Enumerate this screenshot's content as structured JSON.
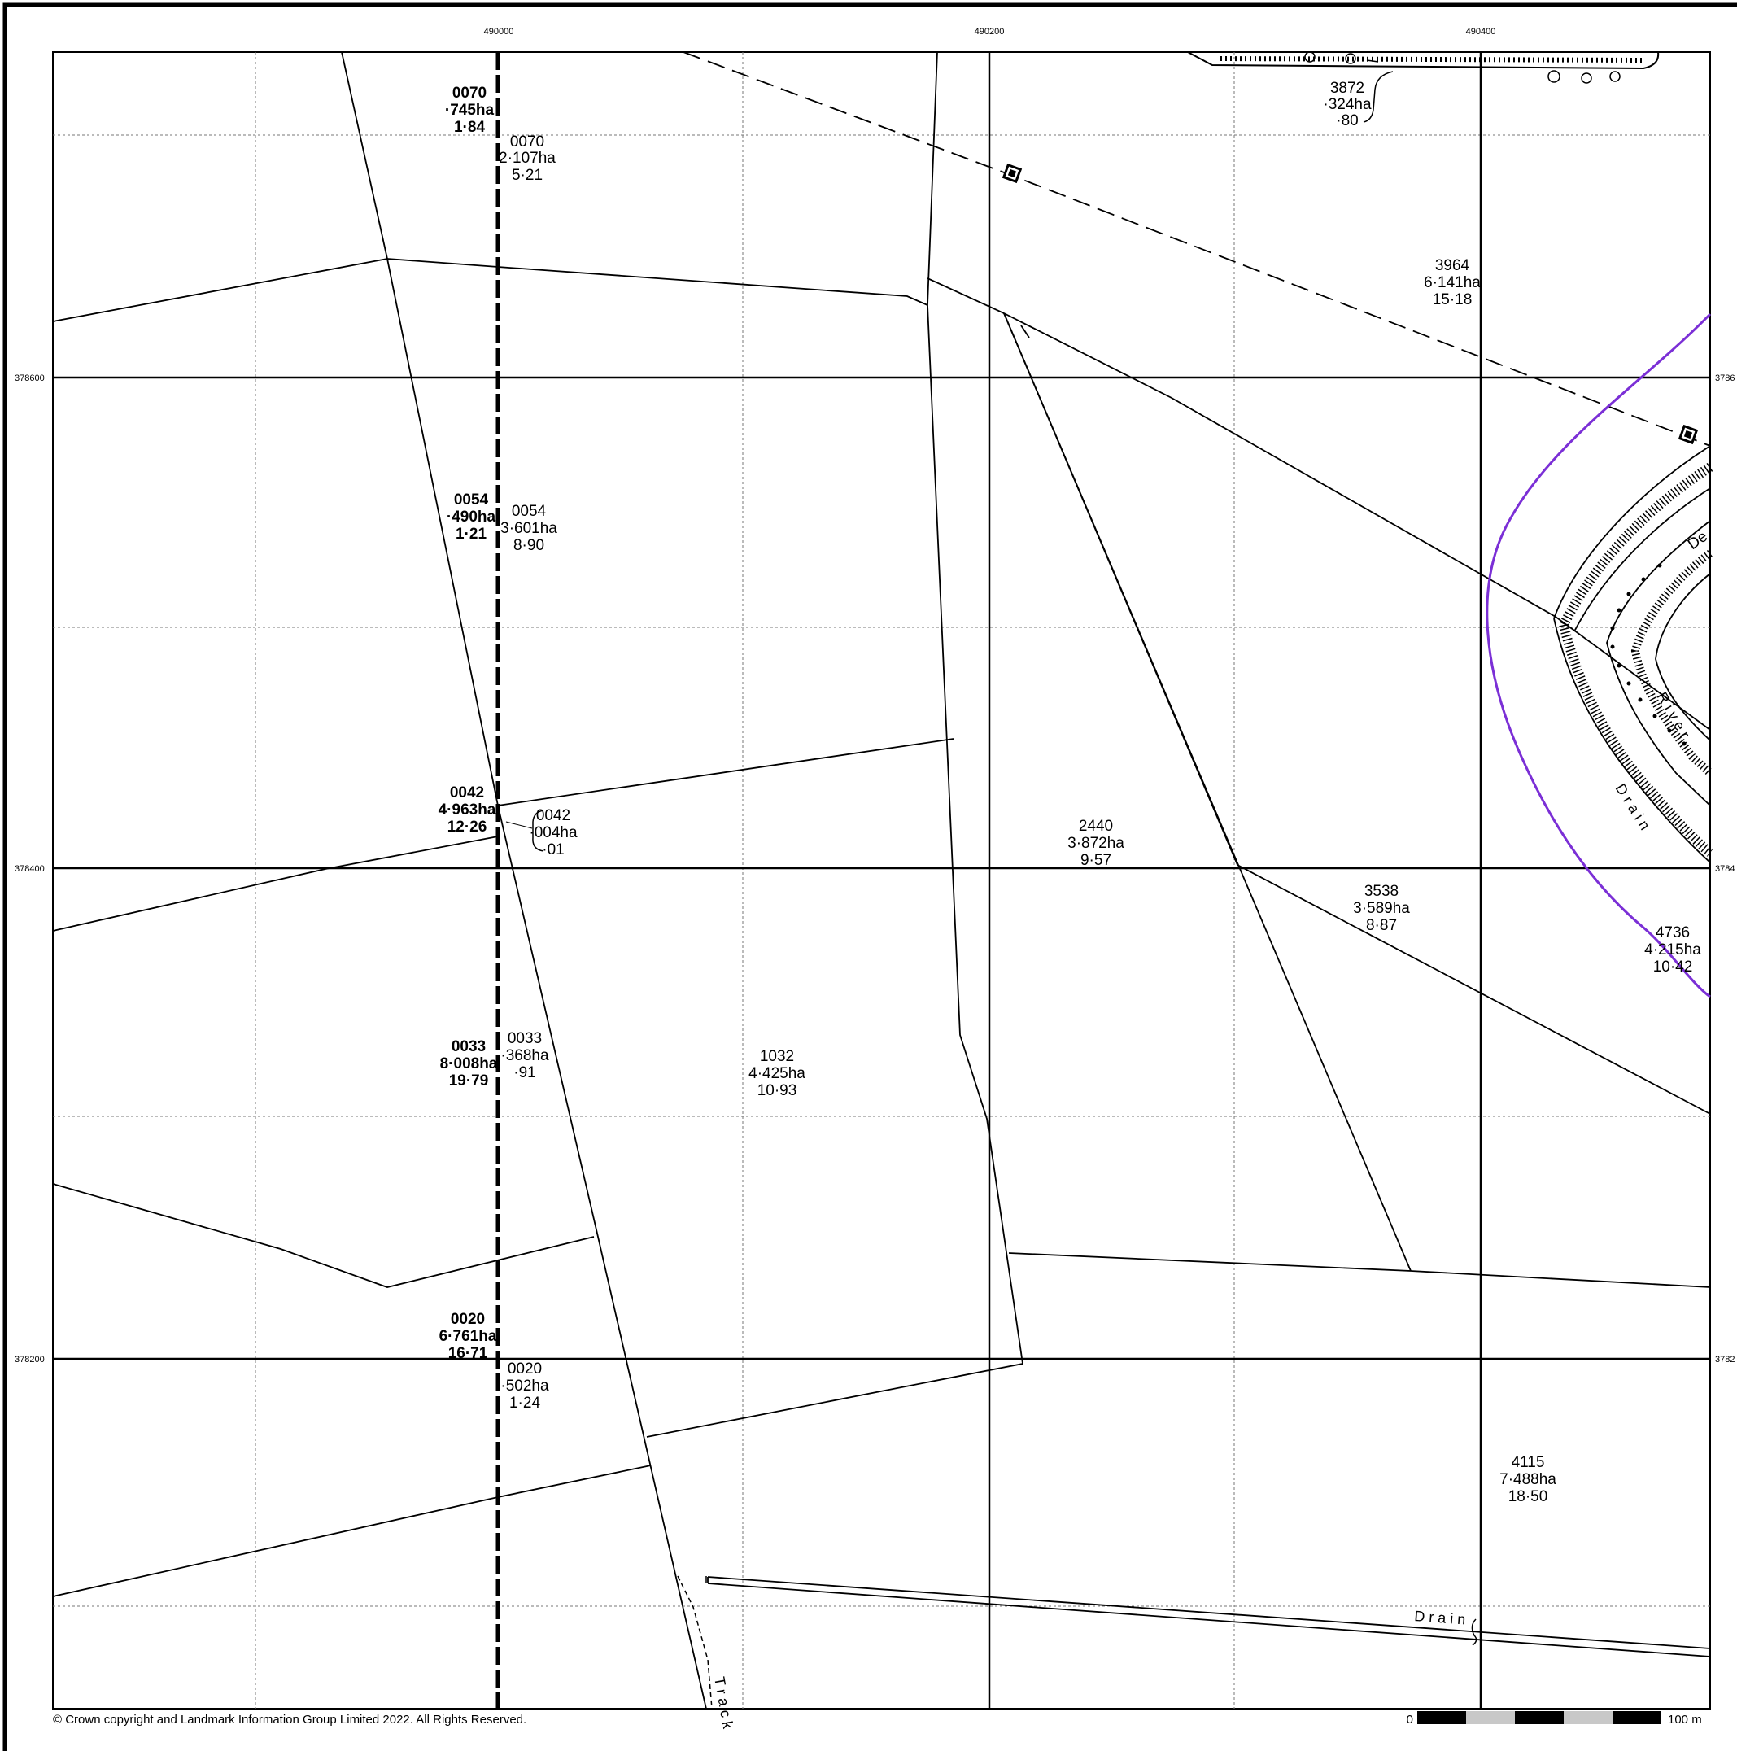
{
  "grid_labels": {
    "eastings": [
      "490000",
      "490200",
      "490400"
    ],
    "northings": [
      "378600",
      "378400",
      "378200"
    ],
    "right_edge": [
      "3786",
      "3784",
      "3782"
    ]
  },
  "parcels": [
    {
      "ref": "0070",
      "area": "·745ha",
      "acres": "1·84",
      "bold": true
    },
    {
      "ref": "0070",
      "area": "2·107ha",
      "acres": "5·21",
      "bold": false
    },
    {
      "ref": "0054",
      "area": "·490ha",
      "acres": "1·21",
      "bold": true
    },
    {
      "ref": "0054",
      "area": "3·601ha",
      "acres": "8·90",
      "bold": false
    },
    {
      "ref": "0042",
      "area": "4·963ha",
      "acres": "12·26",
      "bold": true
    },
    {
      "ref": "0042",
      "area": "·004ha",
      "acres": "·01",
      "bold": false
    },
    {
      "ref": "0033",
      "area": "8·008ha",
      "acres": "19·79",
      "bold": true
    },
    {
      "ref": "0033",
      "area": "·368ha",
      "acres": "·91",
      "bold": false
    },
    {
      "ref": "0020",
      "area": "6·761ha",
      "acres": "16·71",
      "bold": true
    },
    {
      "ref": "0020",
      "area": "·502ha",
      "acres": "1·24",
      "bold": false
    },
    {
      "ref": "1032",
      "area": "4·425ha",
      "acres": "10·93",
      "bold": false
    },
    {
      "ref": "2440",
      "area": "3·872ha",
      "acres": "9·57",
      "bold": false
    },
    {
      "ref": "3538",
      "area": "3·589ha",
      "acres": "8·87",
      "bold": false
    },
    {
      "ref": "3872",
      "area": "·324ha",
      "acres": "·80",
      "bold": false
    },
    {
      "ref": "3964",
      "area": "6·141ha",
      "acres": "15·18",
      "bold": false
    },
    {
      "ref": "4736",
      "area": "4·215ha",
      "acres": "10·42",
      "bold": false
    },
    {
      "ref": "4115",
      "area": "7·488ha",
      "acres": "18·50",
      "bold": false
    }
  ],
  "features": {
    "river": "River",
    "drain_1": "Drain",
    "drain_2": "Drain",
    "track": "Track",
    "de": "De"
  },
  "footer": {
    "copyright": "© Crown copyright and Landmark Information Group Limited 2022.  All Rights Reserved.",
    "scale_start": "0",
    "scale_end": "100 m"
  },
  "colors": {
    "boundary_purple": "#7b2fd6",
    "ink": "#000000"
  }
}
